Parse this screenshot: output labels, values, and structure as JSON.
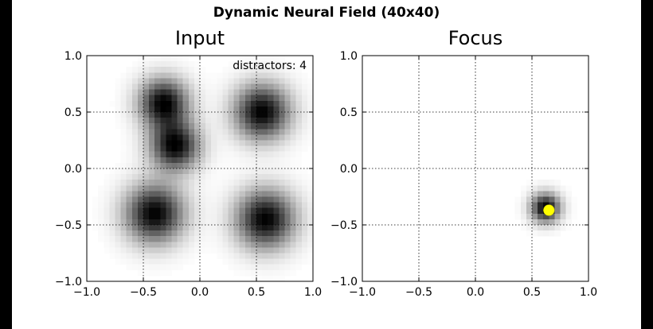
{
  "figure": {
    "title": "Dynamic Neural Field (40x40)"
  },
  "chart_data": [
    {
      "type": "heatmap",
      "title": "Input",
      "xlim": [
        -1.0,
        1.0
      ],
      "ylim": [
        -1.0,
        1.0
      ],
      "xticks": [
        "−1.0",
        "−0.5",
        "0.0",
        "0.5",
        "1.0"
      ],
      "yticks": [
        "−1.0",
        "−0.5",
        "0.0",
        "0.5",
        "1.0"
      ],
      "grid": true,
      "resolution": 40,
      "colormap": "gray_r",
      "annotation": "distractors: 4",
      "blobs": [
        {
          "x": -0.32,
          "y": 0.58,
          "width": 0.15,
          "amplitude": 1.0
        },
        {
          "x": -0.22,
          "y": 0.2,
          "width": 0.15,
          "amplitude": 1.0
        },
        {
          "x": 0.55,
          "y": 0.5,
          "width": 0.17,
          "amplitude": 1.0
        },
        {
          "x": -0.4,
          "y": -0.4,
          "width": 0.18,
          "amplitude": 1.0
        },
        {
          "x": 0.58,
          "y": -0.45,
          "width": 0.18,
          "amplitude": 1.0
        }
      ]
    },
    {
      "type": "heatmap",
      "title": "Focus",
      "xlim": [
        -1.0,
        1.0
      ],
      "ylim": [
        -1.0,
        1.0
      ],
      "xticks": [
        "−1.0",
        "−0.5",
        "0.0",
        "0.5",
        "1.0"
      ],
      "yticks": [
        "−1.0",
        "−0.5",
        "0.0",
        "0.5",
        "1.0"
      ],
      "grid": true,
      "resolution": 40,
      "colormap": "gray_r",
      "blobs": [
        {
          "x": 0.62,
          "y": -0.35,
          "width": 0.09,
          "amplitude": 1.0
        }
      ],
      "marker": {
        "x": 0.65,
        "y": -0.37,
        "color": "#ffff00"
      }
    }
  ]
}
